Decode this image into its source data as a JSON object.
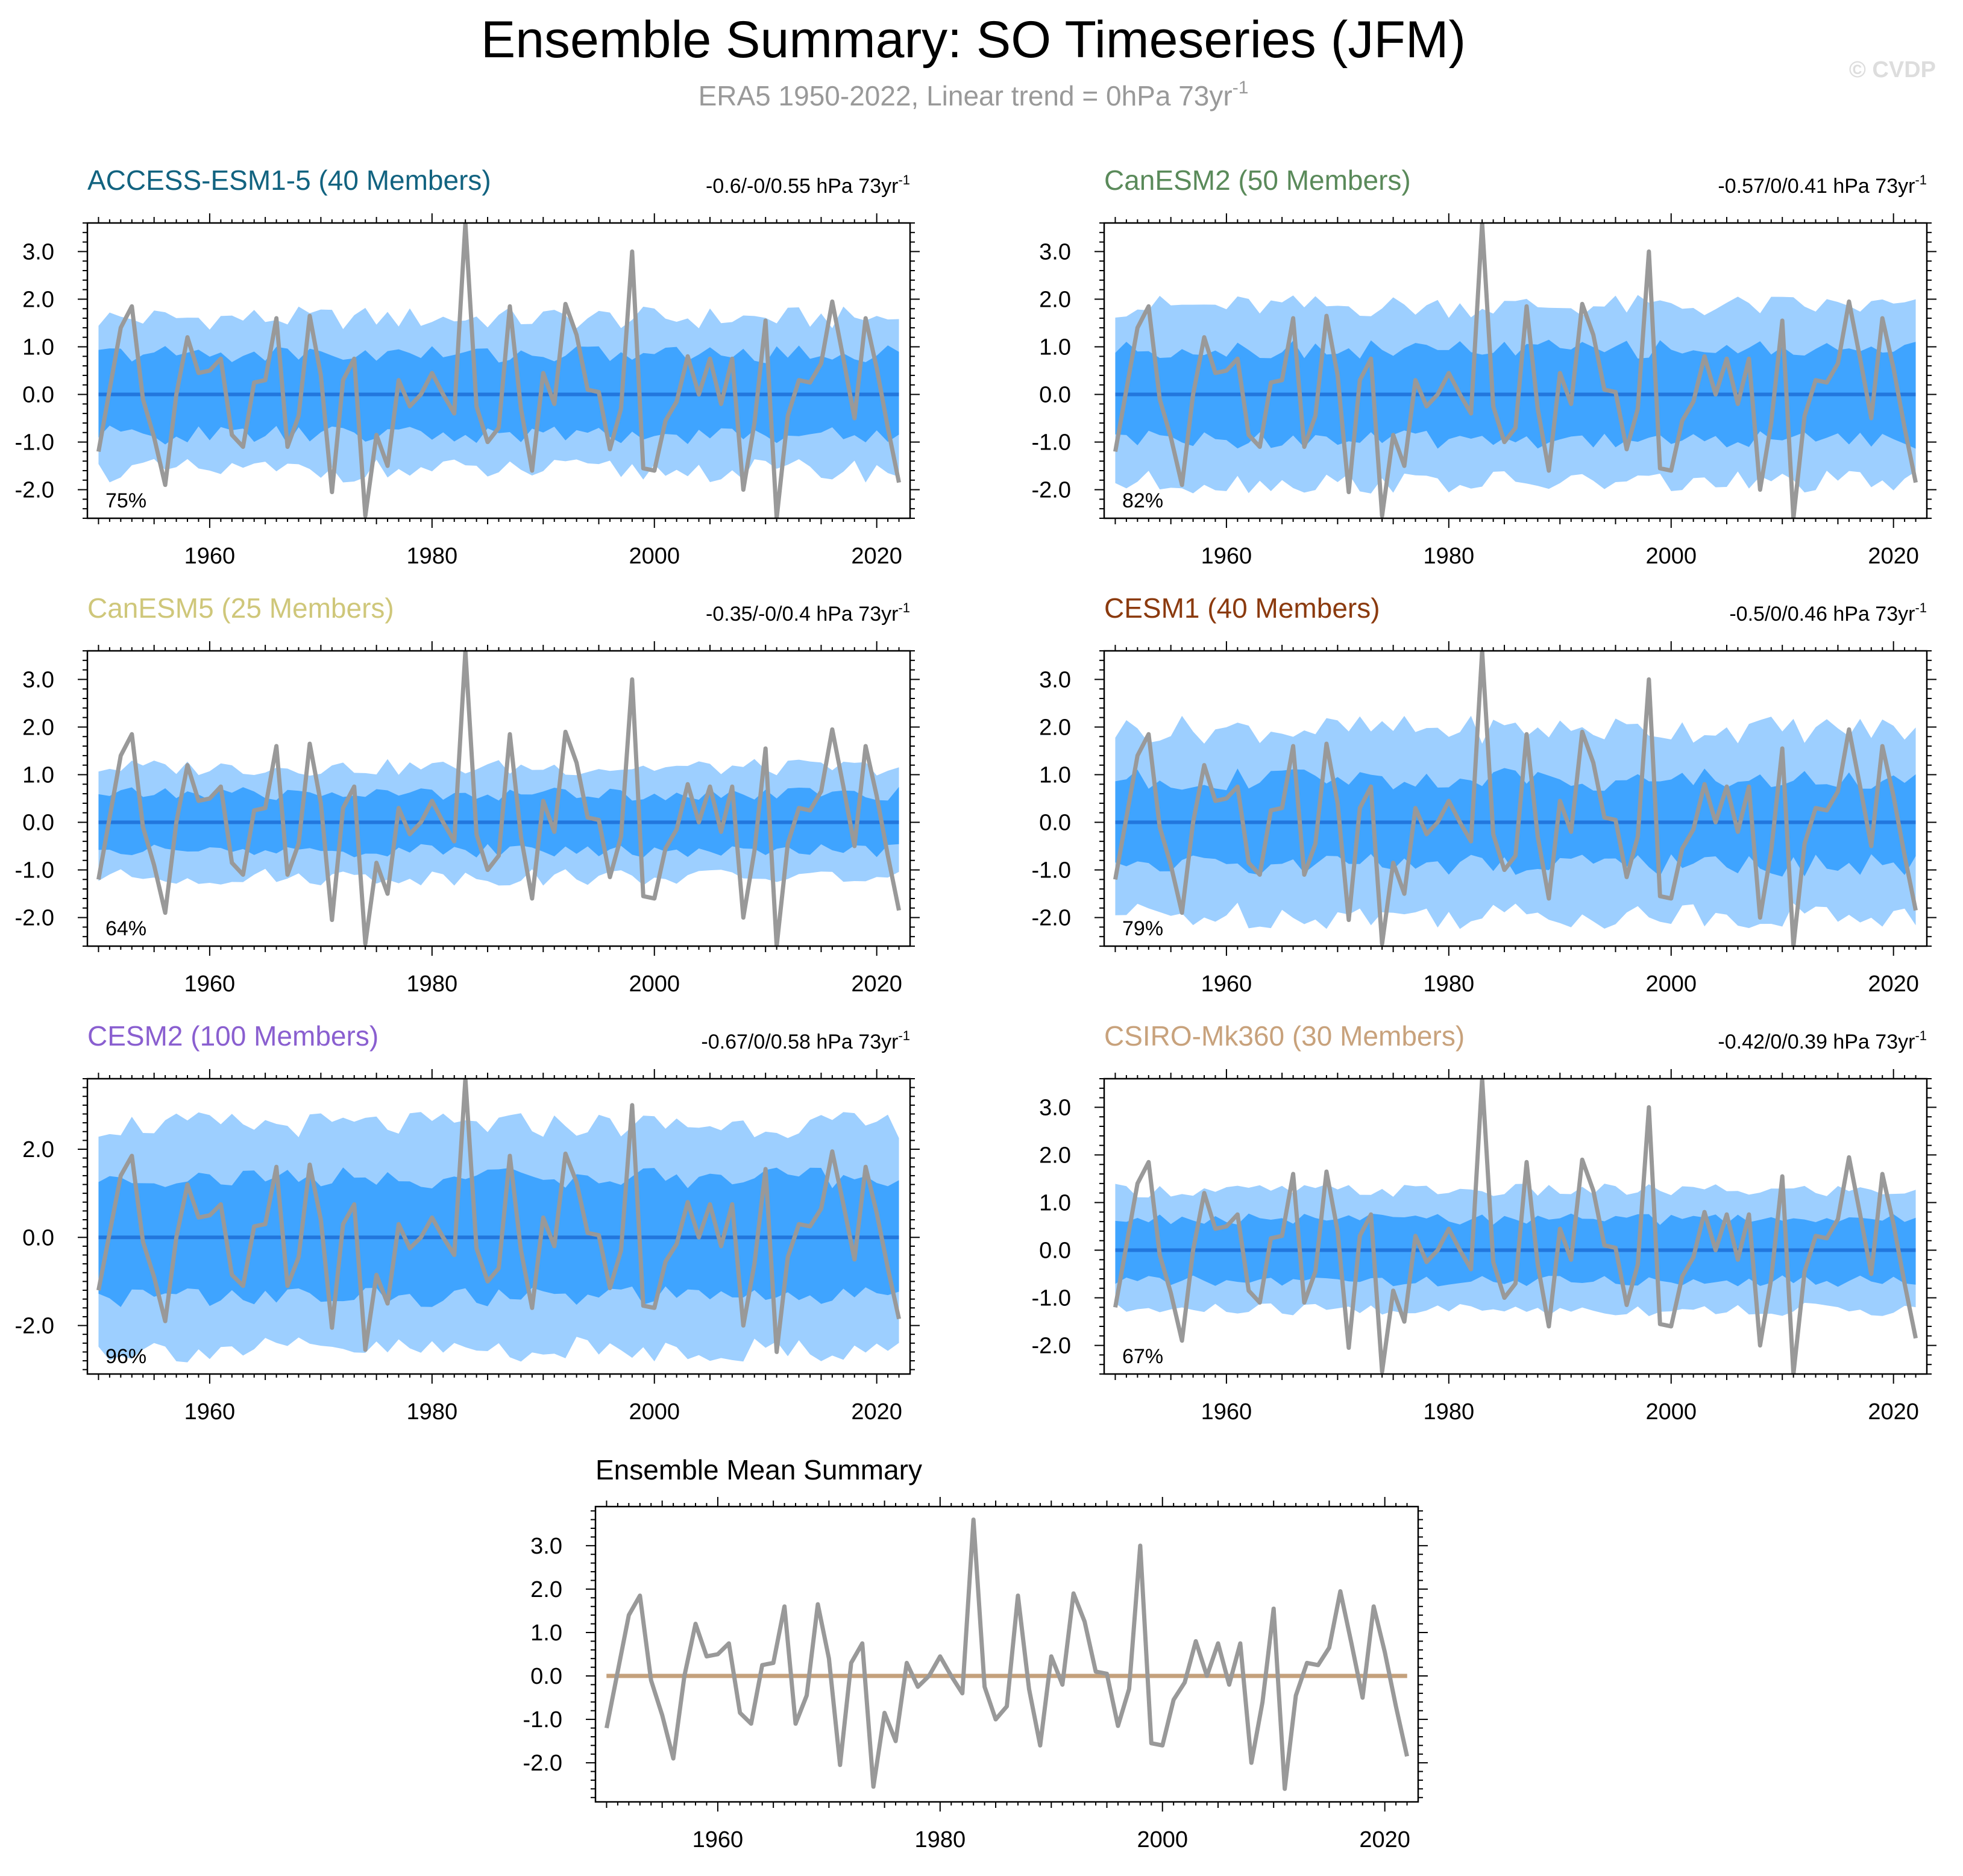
{
  "figure": {
    "title": "Ensemble Summary: SO Timeseries (JFM)",
    "subtitle": "ERA5 1950-2022, Linear trend = 0hPa 73yr",
    "subtitle_sup": "-1",
    "watermark": "© CVDP",
    "colors": {
      "outer_band": "#9dcfff",
      "inner_band": "#3fa4ff",
      "mean_line": "#2277dd",
      "obs_line": "#999999",
      "ens_mean_line": "#c4a17c"
    }
  },
  "observed_series": {
    "name": "ERA5",
    "years": [
      1950,
      1951,
      1952,
      1953,
      1954,
      1955,
      1956,
      1957,
      1958,
      1959,
      1960,
      1961,
      1962,
      1963,
      1964,
      1965,
      1966,
      1967,
      1968,
      1969,
      1970,
      1971,
      1972,
      1973,
      1974,
      1975,
      1976,
      1977,
      1978,
      1979,
      1980,
      1981,
      1982,
      1983,
      1984,
      1985,
      1986,
      1987,
      1988,
      1989,
      1990,
      1991,
      1992,
      1993,
      1994,
      1995,
      1996,
      1997,
      1998,
      1999,
      2000,
      2001,
      2002,
      2003,
      2004,
      2005,
      2006,
      2007,
      2008,
      2009,
      2010,
      2011,
      2012,
      2013,
      2014,
      2015,
      2016,
      2017,
      2018,
      2019,
      2020,
      2021,
      2022
    ],
    "values": [
      -1.2,
      0.1,
      1.4,
      1.85,
      -0.1,
      -0.9,
      -1.9,
      0.0,
      1.2,
      0.45,
      0.5,
      0.75,
      -0.85,
      -1.1,
      0.25,
      0.3,
      1.6,
      -1.1,
      -0.45,
      1.65,
      0.4,
      -2.05,
      0.3,
      0.75,
      -2.55,
      -0.85,
      -1.5,
      0.3,
      -0.25,
      0.0,
      0.45,
      0.0,
      -0.4,
      3.6,
      -0.25,
      -1.0,
      -0.7,
      1.85,
      -0.3,
      -1.6,
      0.45,
      -0.2,
      1.9,
      1.25,
      0.1,
      0.05,
      -1.15,
      -0.3,
      3.0,
      -1.55,
      -1.6,
      -0.55,
      -0.15,
      0.8,
      0.0,
      0.75,
      -0.2,
      0.75,
      -2.0,
      -0.6,
      1.55,
      -2.6,
      -0.45,
      0.3,
      0.25,
      0.65,
      1.95,
      0.75,
      -0.5,
      1.6,
      0.55,
      -0.7,
      -1.85
    ]
  },
  "axes": {
    "xticks": [
      1960,
      1980,
      2000,
      2020
    ],
    "xlim": [
      1949,
      2023
    ]
  },
  "chart_data": [
    {
      "type": "area",
      "title": "ACCESS-ESM1-5 (40 Members)",
      "title_color": "#126380",
      "trend_label": "-0.6/-0/0.55 hPa 73yr",
      "trend_sup": "-1",
      "percent_label": "75%",
      "ylim": [
        -2.6,
        3.6
      ],
      "yticks": [
        3.0,
        2.0,
        1.0,
        0.0,
        -1.0,
        -2.0
      ],
      "ytick_labels": [
        "3.0",
        "2.0",
        "1.0",
        "0.0",
        "-1.0",
        "-2.0"
      ],
      "ensemble_mean": 0.0,
      "inner_band": 0.85,
      "outer_band": 1.6,
      "band_variability": 0.25,
      "x_range": [
        1950,
        2022
      ],
      "legend": null
    },
    {
      "type": "area",
      "title": "CanESM2 (50 Members)",
      "title_color": "#5a8a5a",
      "trend_label": "-0.57/0/0.41 hPa 73yr",
      "trend_sup": "-1",
      "percent_label": "82%",
      "ylim": [
        -2.6,
        3.6
      ],
      "yticks": [
        3.0,
        2.0,
        1.0,
        0.0,
        -1.0,
        -2.0
      ],
      "ytick_labels": [
        "3.0",
        "2.0",
        "1.0",
        "0.0",
        "-1.0",
        "-2.0"
      ],
      "ensemble_mean": 0.0,
      "inner_band": 0.95,
      "outer_band": 1.85,
      "band_variability": 0.25,
      "x_range": [
        1950,
        2022
      ],
      "legend": null
    },
    {
      "type": "area",
      "title": "CanESM5 (25 Members)",
      "title_color": "#cfc77a",
      "trend_label": "-0.35/-0/0.4 hPa 73yr",
      "trend_sup": "-1",
      "percent_label": "64%",
      "ylim": [
        -2.6,
        3.6
      ],
      "yticks": [
        3.0,
        2.0,
        1.0,
        0.0,
        -1.0,
        -2.0
      ],
      "ytick_labels": [
        "3.0",
        "2.0",
        "1.0",
        "0.0",
        "-1.0",
        "-2.0"
      ],
      "ensemble_mean": 0.0,
      "inner_band": 0.6,
      "outer_band": 1.15,
      "band_variability": 0.18,
      "x_range": [
        1950,
        2022
      ],
      "legend": null
    },
    {
      "type": "area",
      "title": "CESM1 (40 Members)",
      "title_color": "#8b3a0e",
      "trend_label": "-0.5/0/0.46 hPa 73yr",
      "trend_sup": "-1",
      "percent_label": "79%",
      "ylim": [
        -2.6,
        3.6
      ],
      "yticks": [
        3.0,
        2.0,
        1.0,
        0.0,
        -1.0,
        -2.0
      ],
      "ytick_labels": [
        "3.0",
        "2.0",
        "1.0",
        "0.0",
        "-1.0",
        "-2.0"
      ],
      "ensemble_mean": 0.0,
      "inner_band": 0.9,
      "outer_band": 1.95,
      "band_variability": 0.3,
      "x_range": [
        1950,
        2022
      ],
      "legend": null
    },
    {
      "type": "area",
      "title": "CESM2 (100 Members)",
      "title_color": "#8a5fd0",
      "trend_label": "-0.67/0/0.58 hPa 73yr",
      "trend_sup": "-1",
      "percent_label": "96%",
      "ylim": [
        -3.1,
        3.6
      ],
      "yticks": [
        2.0,
        0.0,
        -2.0
      ],
      "ytick_labels": [
        "2.0",
        "0.0",
        "-2.0"
      ],
      "ensemble_mean": 0.0,
      "inner_band": 1.35,
      "outer_band": 2.55,
      "band_variability": 0.3,
      "x_range": [
        1950,
        2022
      ],
      "legend": null
    },
    {
      "type": "area",
      "title": "CSIRO-Mk360 (30 Members)",
      "title_color": "#c8a27c",
      "trend_label": "-0.42/0/0.39 hPa 73yr",
      "trend_sup": "-1",
      "percent_label": "67%",
      "ylim": [
        -2.6,
        3.6
      ],
      "yticks": [
        3.0,
        2.0,
        1.0,
        0.0,
        -1.0,
        -2.0
      ],
      "ytick_labels": [
        "3.0",
        "2.0",
        "1.0",
        "0.0",
        "-1.0",
        "-2.0"
      ],
      "ensemble_mean": 0.0,
      "inner_band": 0.65,
      "outer_band": 1.25,
      "band_variability": 0.15,
      "x_range": [
        1950,
        2022
      ],
      "legend": null
    },
    {
      "type": "line",
      "title": "Ensemble Mean Summary",
      "title_color": "#000000",
      "ylim": [
        -2.9,
        3.9
      ],
      "yticks": [
        3.0,
        2.0,
        1.0,
        0.0,
        -1.0,
        -2.0
      ],
      "ytick_labels": [
        "3.0",
        "2.0",
        "1.0",
        "0.0",
        "-1.0",
        "-2.0"
      ],
      "ensemble_means": [
        0.0,
        0.0,
        0.0,
        0.0,
        0.0,
        0.0
      ],
      "x_range": [
        1950,
        2022
      ],
      "legend": null
    }
  ]
}
